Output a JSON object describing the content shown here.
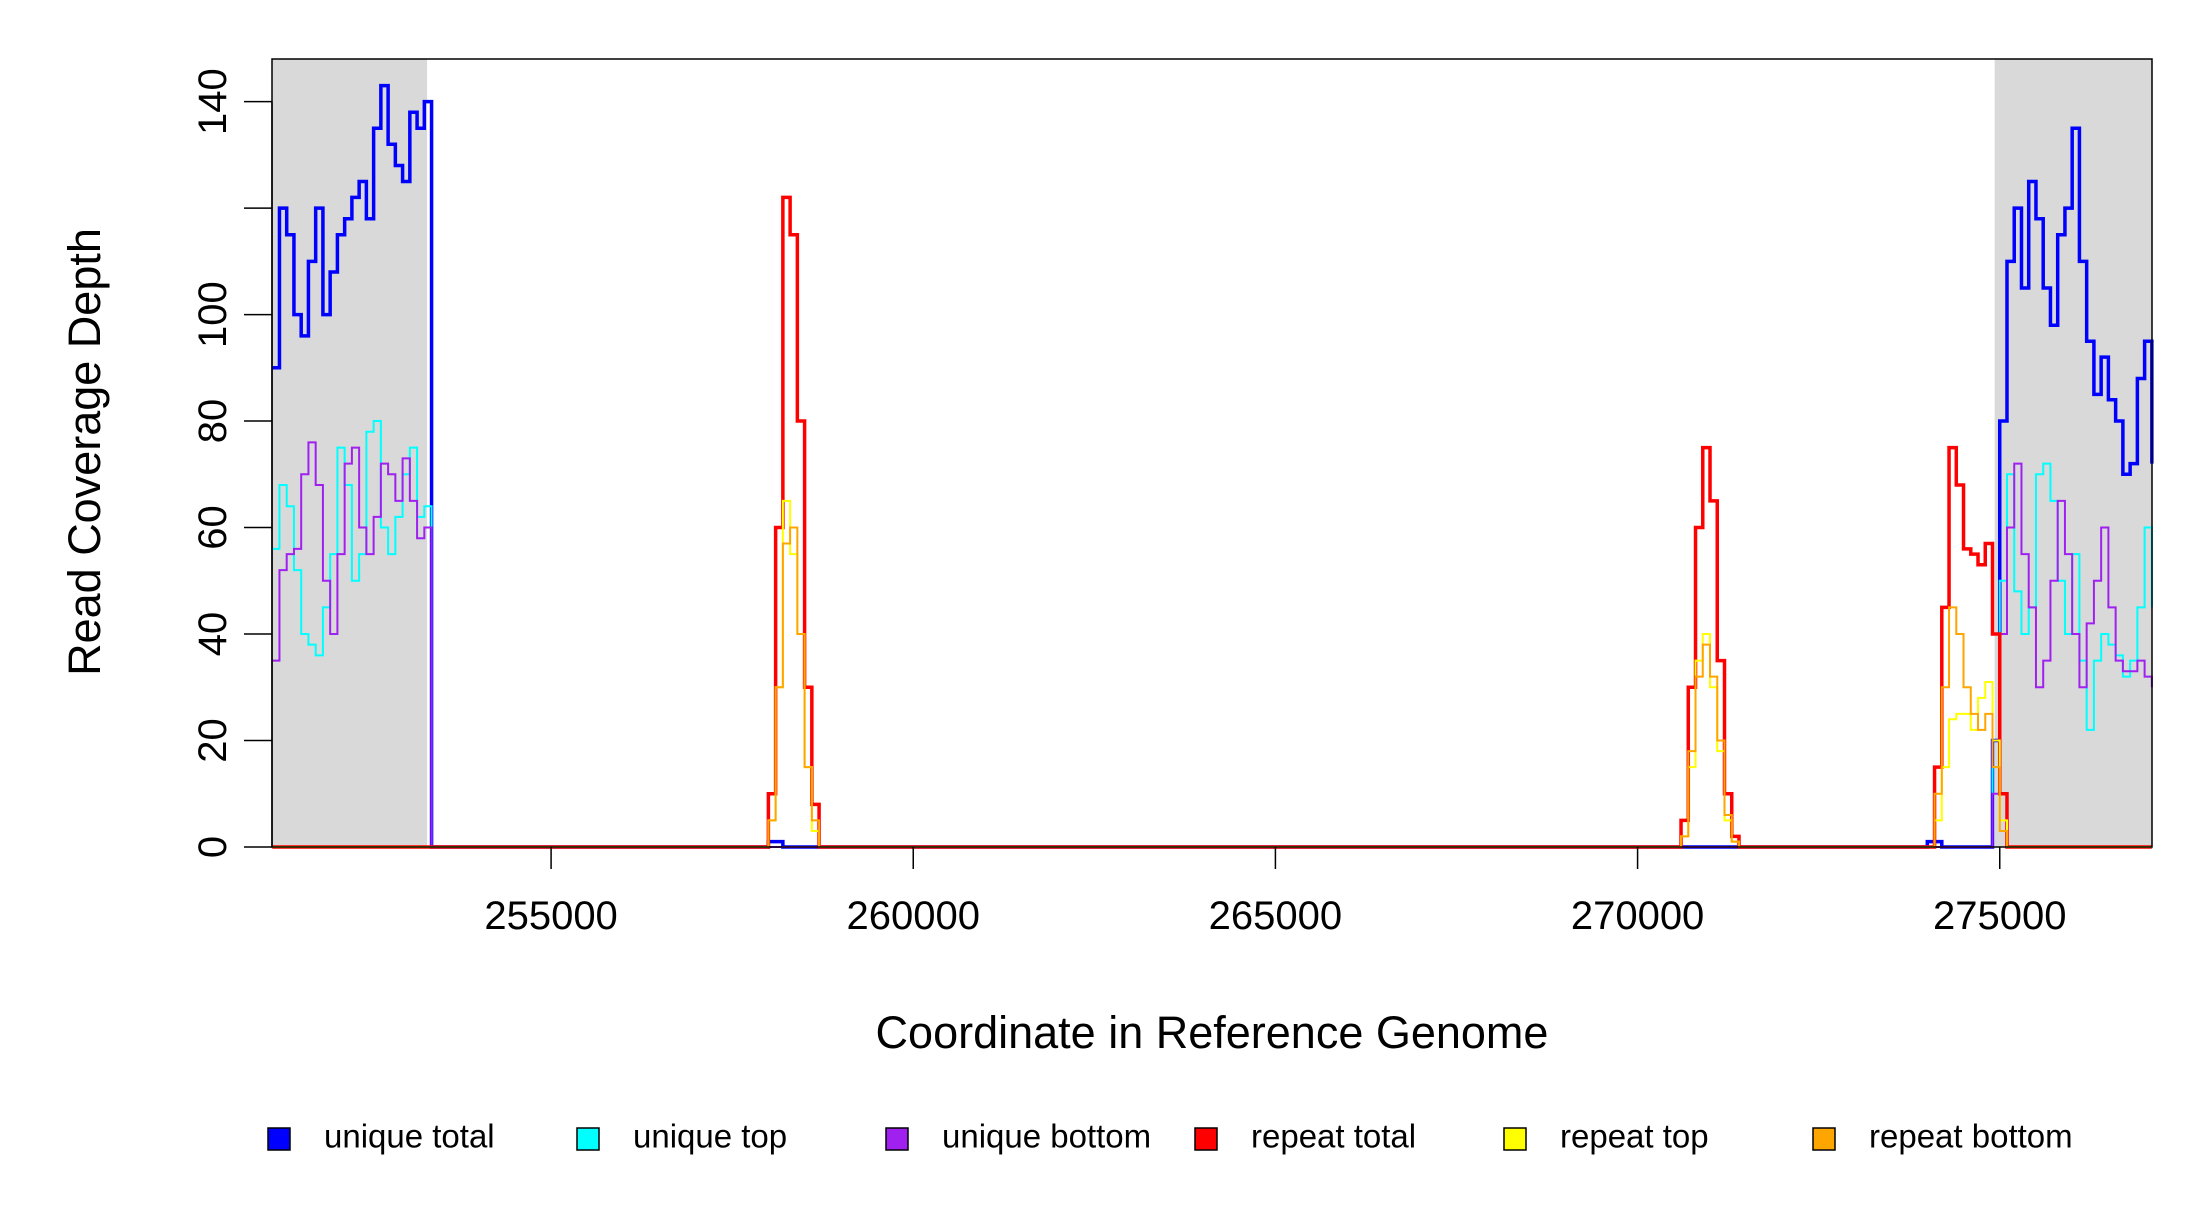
{
  "chart_data": {
    "type": "line",
    "step": true,
    "x_label": "Coordinate in Reference Genome",
    "y_label": "Read Coverage Depth",
    "xlim": [
      251147,
      277102
    ],
    "ylim": [
      0,
      148
    ],
    "xticks": [
      255000,
      260000,
      265000,
      270000,
      275000
    ],
    "yticks": [
      0,
      20,
      40,
      60,
      80,
      100,
      {
        "value": 120,
        "label": null
      },
      140
    ],
    "shaded_regions": [
      [
        251147,
        253288
      ],
      [
        274930,
        277102
      ]
    ],
    "shade_color": "#d9d9d9",
    "legend": "bottom",
    "x": [
      251150,
      251250,
      251350,
      251450,
      251550,
      251650,
      251750,
      251850,
      251950,
      252050,
      252150,
      252250,
      252350,
      252450,
      252550,
      252650,
      252750,
      252850,
      252950,
      253050,
      253150,
      253250,
      253350,
      257900,
      258000,
      258100,
      258200,
      258300,
      258400,
      258500,
      258600,
      258700,
      258800,
      270500,
      270600,
      270700,
      270800,
      270900,
      271000,
      271100,
      271200,
      271300,
      271400,
      271500,
      274000,
      274100,
      274200,
      274300,
      274400,
      274500,
      274600,
      274700,
      274800,
      274900,
      275000,
      275100,
      275200,
      275300,
      275400,
      275500,
      275600,
      275700,
      275800,
      275900,
      276000,
      276100,
      276200,
      276300,
      276400,
      276500,
      276600,
      276700,
      276800,
      276900,
      277000,
      277100
    ],
    "series": [
      {
        "name": "unique total",
        "color": "#0000ff",
        "width": 3.5,
        "values": [
          90,
          120,
          115,
          100,
          96,
          110,
          120,
          100,
          108,
          115,
          118,
          122,
          125,
          118,
          135,
          143,
          132,
          128,
          125,
          138,
          135,
          140,
          0,
          0,
          1,
          1,
          0,
          0,
          0,
          0,
          0,
          0,
          0,
          0,
          0,
          0,
          0,
          0,
          0,
          0,
          0,
          0,
          0,
          0,
          1,
          1,
          0,
          0,
          0,
          0,
          0,
          0,
          0,
          20,
          80,
          110,
          120,
          105,
          125,
          118,
          105,
          98,
          115,
          120,
          135,
          110,
          95,
          85,
          92,
          84,
          80,
          70,
          72,
          88,
          95,
          72
        ]
      },
      {
        "name": "unique top",
        "color": "#00ffff",
        "width": 2,
        "values": [
          56,
          68,
          64,
          52,
          40,
          38,
          36,
          45,
          55,
          75,
          68,
          50,
          55,
          78,
          80,
          60,
          55,
          62,
          70,
          75,
          62,
          64,
          0,
          0,
          0,
          0,
          0,
          0,
          0,
          0,
          0,
          0,
          0,
          0,
          0,
          0,
          0,
          0,
          0,
          0,
          0,
          0,
          0,
          0,
          0,
          0,
          0,
          0,
          0,
          0,
          0,
          0,
          0,
          15,
          50,
          70,
          48,
          40,
          45,
          70,
          72,
          65,
          50,
          40,
          55,
          35,
          22,
          35,
          40,
          38,
          36,
          32,
          35,
          45,
          60,
          45
        ]
      },
      {
        "name": "unique bottom",
        "color": "#a020f0",
        "width": 2,
        "values": [
          35,
          52,
          55,
          56,
          70,
          76,
          68,
          50,
          40,
          55,
          72,
          75,
          60,
          55,
          62,
          72,
          70,
          65,
          73,
          65,
          58,
          60,
          0,
          0,
          0,
          0,
          0,
          0,
          0,
          0,
          0,
          0,
          0,
          0,
          0,
          0,
          0,
          0,
          0,
          0,
          0,
          0,
          0,
          0,
          0,
          0,
          0,
          0,
          0,
          0,
          0,
          0,
          0,
          10,
          40,
          60,
          72,
          55,
          45,
          30,
          35,
          50,
          65,
          55,
          40,
          30,
          42,
          50,
          60,
          45,
          35,
          33,
          33,
          35,
          32,
          30
        ]
      },
      {
        "name": "repeat total",
        "color": "#ff0000",
        "width": 3.5,
        "values": [
          0,
          0,
          0,
          0,
          0,
          0,
          0,
          0,
          0,
          0,
          0,
          0,
          0,
          0,
          0,
          0,
          0,
          0,
          0,
          0,
          0,
          0,
          0,
          0,
          10,
          60,
          122,
          115,
          80,
          30,
          8,
          0,
          0,
          0,
          5,
          30,
          60,
          75,
          65,
          35,
          10,
          2,
          0,
          0,
          0,
          15,
          45,
          75,
          68,
          56,
          55,
          53,
          57,
          40,
          10,
          0,
          0,
          0,
          0,
          0,
          0,
          0,
          0,
          0,
          0,
          0,
          0,
          0,
          0,
          0,
          0,
          0,
          0,
          0,
          0,
          0
        ]
      },
      {
        "name": "repeat top",
        "color": "#ffff00",
        "width": 2,
        "values": [
          0,
          0,
          0,
          0,
          0,
          0,
          0,
          0,
          0,
          0,
          0,
          0,
          0,
          0,
          0,
          0,
          0,
          0,
          0,
          0,
          0,
          0,
          0,
          0,
          5,
          30,
          65,
          55,
          40,
          15,
          3,
          0,
          0,
          0,
          2,
          15,
          35,
          40,
          30,
          18,
          5,
          1,
          0,
          0,
          0,
          5,
          15,
          24,
          25,
          25,
          22,
          28,
          31,
          20,
          5,
          0,
          0,
          0,
          0,
          0,
          0,
          0,
          0,
          0,
          0,
          0,
          0,
          0,
          0,
          0,
          0,
          0,
          0,
          0,
          0,
          0
        ]
      },
      {
        "name": "repeat bottom",
        "color": "#ffa500",
        "width": 2,
        "values": [
          0,
          0,
          0,
          0,
          0,
          0,
          0,
          0,
          0,
          0,
          0,
          0,
          0,
          0,
          0,
          0,
          0,
          0,
          0,
          0,
          0,
          0,
          0,
          0,
          5,
          30,
          57,
          60,
          40,
          15,
          5,
          0,
          0,
          0,
          2,
          18,
          32,
          38,
          32,
          20,
          6,
          1,
          0,
          0,
          0,
          10,
          30,
          45,
          40,
          30,
          25,
          22,
          25,
          15,
          3,
          0,
          0,
          0,
          0,
          0,
          0,
          0,
          0,
          0,
          0,
          0,
          0,
          0,
          0,
          0,
          0,
          0,
          0,
          0,
          0,
          0
        ]
      }
    ]
  }
}
